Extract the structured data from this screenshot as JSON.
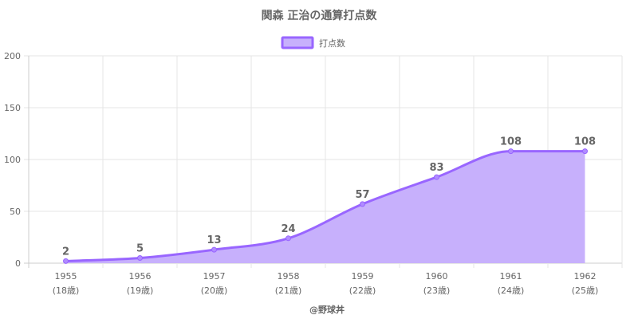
{
  "chart_data": {
    "type": "area",
    "title": "関森 正治の通算打点数",
    "legend": {
      "position": "top",
      "label": "打点数"
    },
    "categories": [
      "1955",
      "1956",
      "1957",
      "1958",
      "1959",
      "1960",
      "1961",
      "1962"
    ],
    "sub_categories": [
      "(18歳)",
      "(19歳)",
      "(20歳)",
      "(21歳)",
      "(22歳)",
      "(23歳)",
      "(24歳)",
      "(25歳)"
    ],
    "series": [
      {
        "name": "打点数",
        "values": [
          2,
          5,
          13,
          24,
          57,
          83,
          108,
          108
        ]
      }
    ],
    "data_labels": [
      "2",
      "5",
      "13",
      "24",
      "57",
      "83",
      "108",
      "108"
    ],
    "ylim": [
      0,
      200
    ],
    "yticks": [
      0,
      50,
      100,
      150,
      200
    ],
    "ytick_labels": [
      "0",
      "50",
      "100",
      "150",
      "200"
    ],
    "grid": true,
    "colors": {
      "line": "#9966ff",
      "fill": "#c7b0fc",
      "point": "#b08cff",
      "grid": "#e6e6e6",
      "text": "#666666"
    },
    "credit": "@野球丼"
  }
}
